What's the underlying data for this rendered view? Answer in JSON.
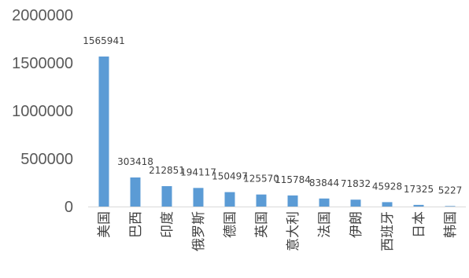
{
  "chart_data": {
    "type": "bar",
    "title": "",
    "xlabel": "",
    "ylabel": "",
    "categories": [
      "美国",
      "巴西",
      "印度",
      "俄罗斯",
      "德国",
      "英国",
      "意大利",
      "法国",
      "伊朗",
      "西班牙",
      "日本",
      "韩国"
    ],
    "values": [
      1565941,
      303418,
      212851,
      194117,
      150497,
      125570,
      115784,
      83844,
      71832,
      45928,
      17325,
      5227
    ],
    "data_labels": [
      "1565941",
      "303418",
      "212851",
      "194117",
      "150497",
      "125570",
      "115784",
      "83844",
      "71832",
      "45928",
      "17325",
      "5227"
    ],
    "y_ticks": [
      0,
      500000,
      1000000,
      1500000,
      2000000
    ],
    "y_tick_labels": [
      "0",
      "500000",
      "1000000",
      "1500000",
      "2000000"
    ],
    "ylim": [
      0,
      2000000
    ],
    "grid": false,
    "legend": "none",
    "colors": {
      "bar": "#5B9BD5",
      "axis": "#d9d9d9",
      "text": "#595959"
    }
  }
}
